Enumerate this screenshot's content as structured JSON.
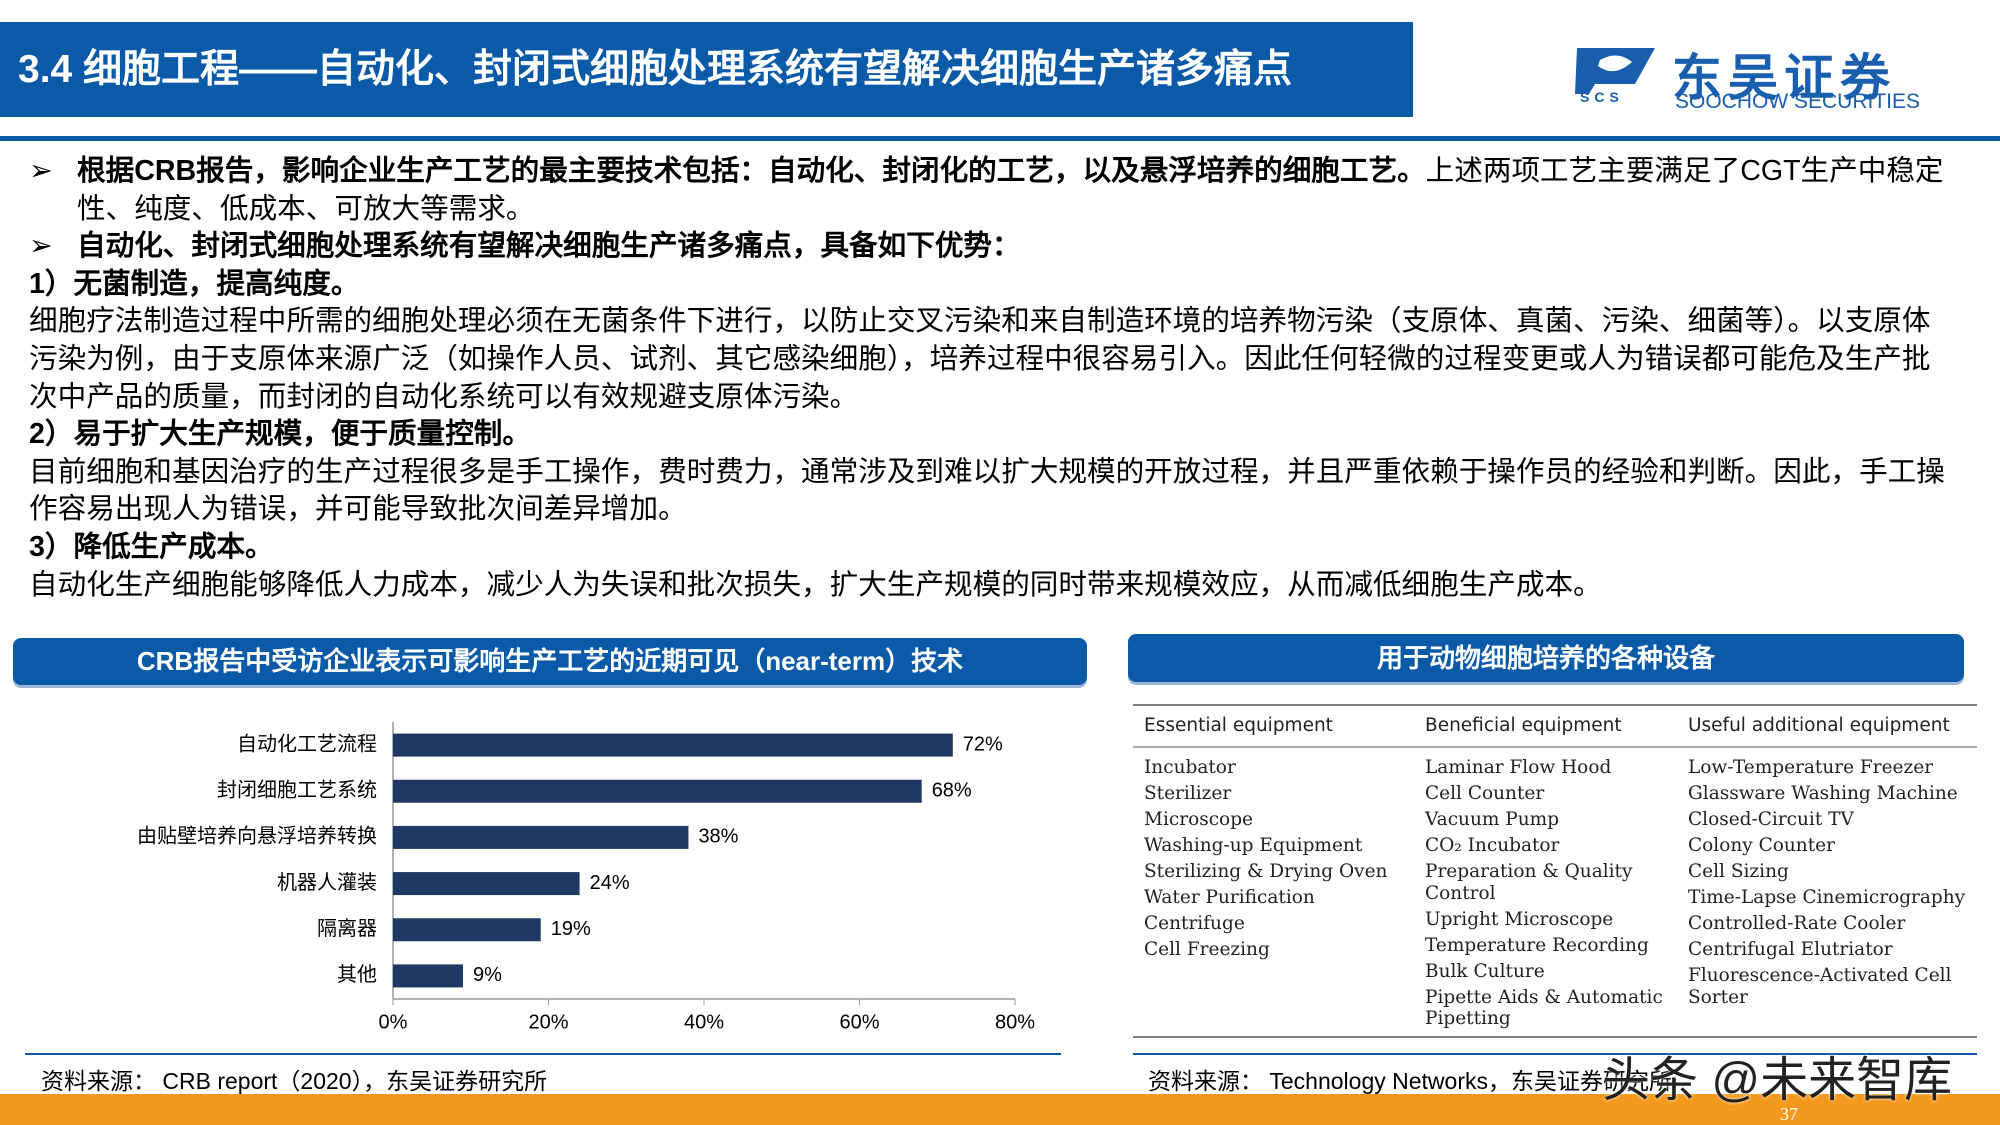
{
  "header": {
    "title": "3.4 细胞工程——自动化、封闭式细胞处理系统有望解决细胞生产诸多痛点",
    "logo_cn": "东吴证券",
    "logo_en": "SOOCHOW SECURITIES",
    "logo_abbr": "SCS"
  },
  "body": {
    "bullets": [
      {
        "bold": "根据CRB报告，影响企业生产工艺的最主要技术包括：自动化、封闭化的工艺，以及悬浮培养的细胞工艺。",
        "text": "上述两项工艺主要满足了CGT生产中稳定性、纯度、低成本、可放大等需求。"
      },
      {
        "bold": "自动化、封闭式细胞处理系统有望解决细胞生产诸多痛点，具备如下优势："
      }
    ],
    "sections": [
      {
        "heading": "1）无菌制造，提高纯度。",
        "text": "细胞疗法制造过程中所需的细胞处理必须在无菌条件下进行，以防止交叉污染和来自制造环境的培养物污染（支原体、真菌、污染、细菌等）。以支原体污染为例，由于支原体来源广泛（如操作人员、试剂、其它感染细胞），培养过程中很容易引入。因此任何轻微的过程变更或人为错误都可能危及生产批次中产品的质量，而封闭的自动化系统可以有效规避支原体污染。"
      },
      {
        "heading": "2）易于扩大生产规模，便于质量控制。",
        "text": "目前细胞和基因治疗的生产过程很多是手工操作，费时费力，通常涉及到难以扩大规模的开放过程，并且严重依赖于操作员的经验和判断。因此，手工操作容易出现人为错误，并可能导致批次间差异增加。"
      },
      {
        "heading": "3）降低生产成本。",
        "text": "自动化生产细胞能够降低人力成本，减少人为失误和批次损失，扩大生产规模的同时带来规模效应，从而减低细胞生产成本。"
      }
    ]
  },
  "chart_data": {
    "type": "bar",
    "orientation": "horizontal",
    "title": "CRB报告中受访企业表示可影响生产工艺的近期可见（near-term）技术",
    "categories": [
      "自动化工艺流程",
      "封闭细胞工艺系统",
      "由贴壁培养向悬浮培养转换",
      "机器人灌装",
      "隔离器",
      "其他"
    ],
    "values": [
      72,
      68,
      38,
      24,
      19,
      9
    ],
    "value_labels": [
      "72%",
      "68%",
      "38%",
      "24%",
      "19%",
      "9%"
    ],
    "color": "#1f3864",
    "xlim": [
      0,
      80
    ],
    "xticks": [
      {
        "value": 0,
        "label": "0%"
      },
      {
        "value": 20,
        "label": "20%"
      },
      {
        "value": 40,
        "label": "40%"
      },
      {
        "value": 60,
        "label": "60%"
      },
      {
        "value": 80,
        "label": "80%"
      }
    ],
    "source": "资料来源： CRB report（2020），东吴证券研究所"
  },
  "table": {
    "title": "用于动物细胞培养的各种设备",
    "columns": [
      {
        "header": "Essential equipment",
        "items": [
          "Incubator",
          "Sterilizer",
          "Microscope",
          "Washing-up Equipment",
          "Sterilizing & Drying Oven",
          "Water Purification",
          "Centrifuge",
          "Cell Freezing"
        ]
      },
      {
        "header": "Beneficial equipment",
        "items": [
          "Laminar Flow Hood",
          "Cell Counter",
          "Vacuum Pump",
          "CO₂ Incubator",
          "Preparation & Quality Control",
          "Upright Microscope",
          "Temperature Recording",
          "Bulk Culture",
          "Pipette Aids & Automatic Pipetting"
        ]
      },
      {
        "header": "Useful additional equipment",
        "items": [
          "Low-Temperature Freezer",
          "Glassware Washing Machine",
          "Closed-Circuit TV",
          "Colony Counter",
          "Cell Sizing",
          "Time-Lapse Cinemicrography",
          "Controlled-Rate Cooler",
          "Centrifugal Elutriator",
          "Fluorescence-Activated Cell Sorter"
        ]
      }
    ],
    "source": "资料来源： Technology Networks，东吴证券研究所"
  },
  "footer": {
    "page": "37",
    "watermark": "头条 @未来智库"
  }
}
